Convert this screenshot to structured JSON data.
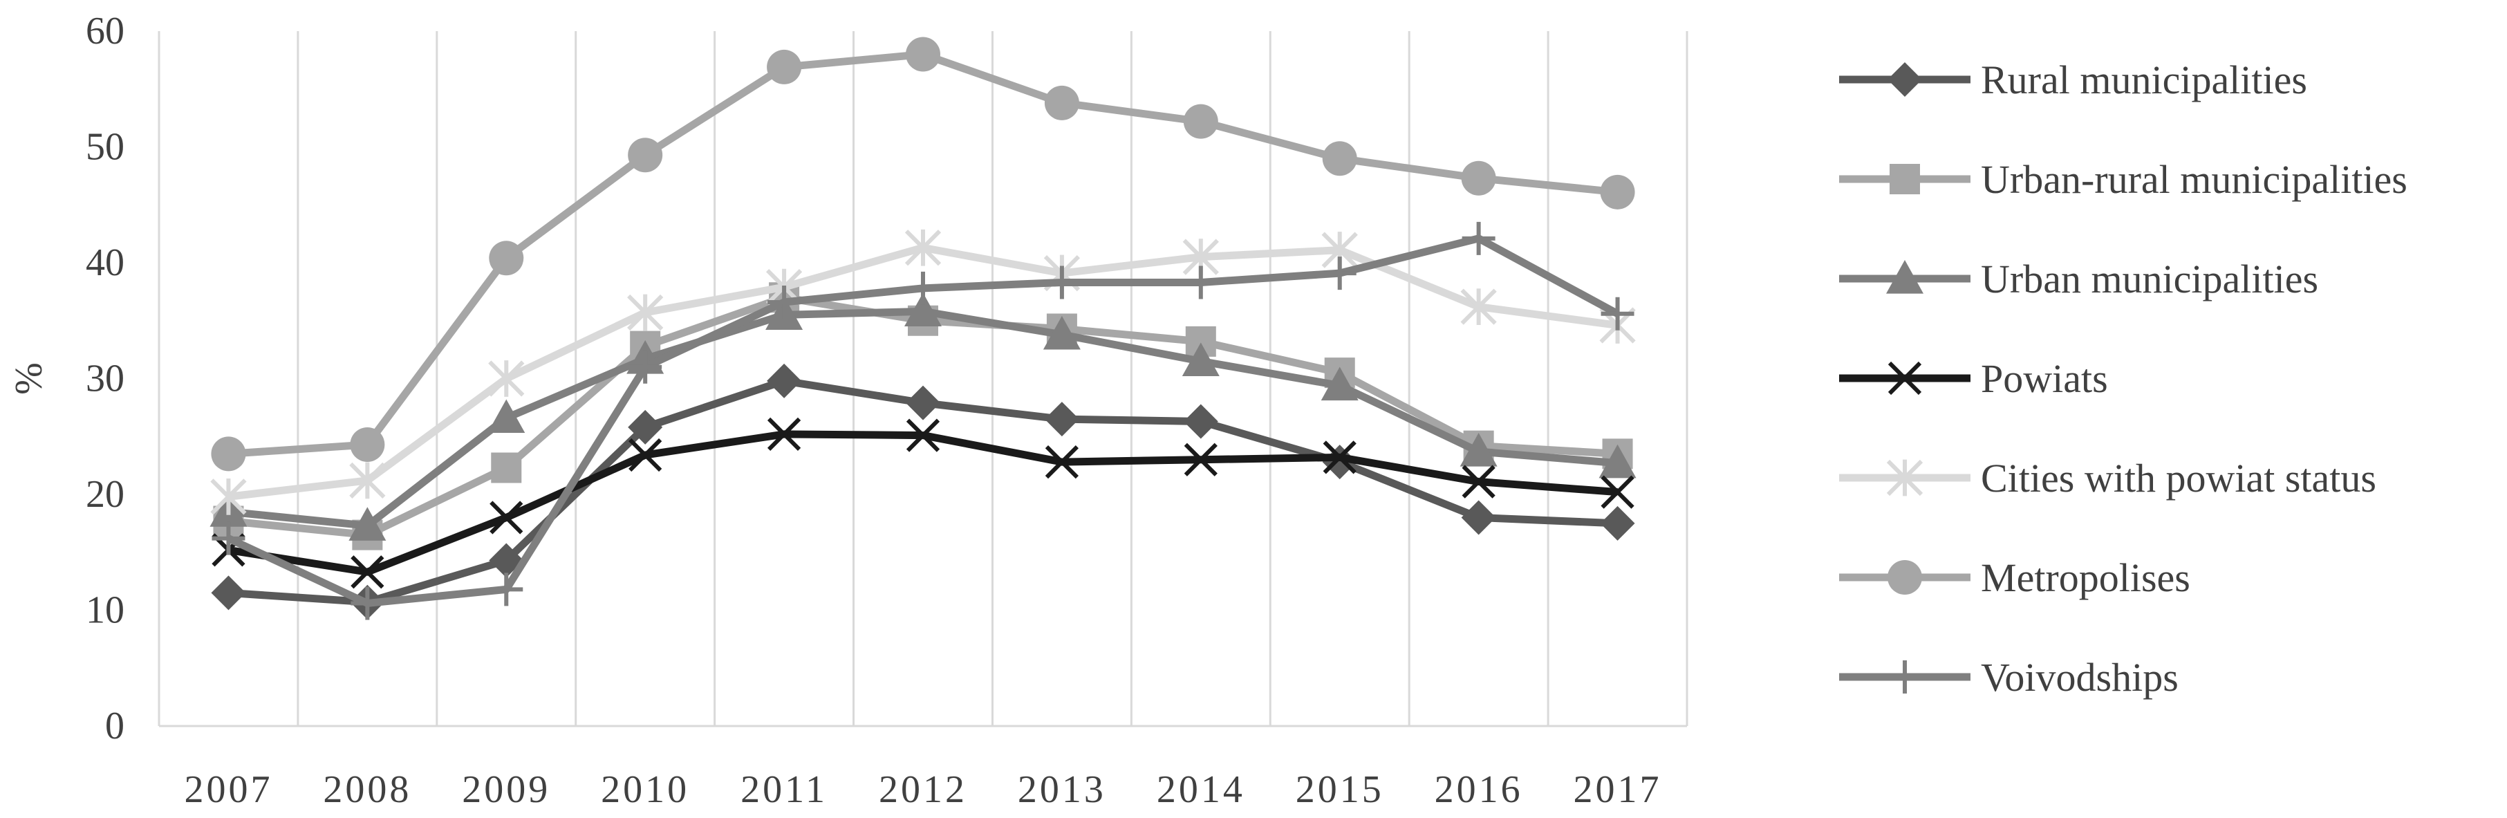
{
  "chart_data": {
    "type": "line",
    "title": "",
    "xlabel": "",
    "ylabel": "%",
    "ylim": [
      0,
      60
    ],
    "yticks": [
      0,
      10,
      20,
      30,
      40,
      50,
      60
    ],
    "grid": {
      "vertical": true,
      "horizontal": false
    },
    "legend_position": "right",
    "categories": [
      "2007",
      "2008",
      "2009",
      "2010",
      "2011",
      "2012",
      "2013",
      "2014",
      "2015",
      "2016",
      "2017"
    ],
    "series": [
      {
        "name": "Rural municipalities",
        "marker": "diamond",
        "color": "#595959",
        "values": [
          11.5,
          10.7,
          14.3,
          25.8,
          29.8,
          27.9,
          26.5,
          26.3,
          22.8,
          18.0,
          17.5
        ]
      },
      {
        "name": "Urban-rural municipalities",
        "marker": "square",
        "color": "#a6a6a6",
        "values": [
          17.7,
          16.5,
          22.3,
          32.8,
          37.0,
          35.0,
          34.3,
          33.2,
          30.5,
          24.2,
          23.5
        ]
      },
      {
        "name": "Urban municipalities",
        "marker": "triangle",
        "color": "#7f7f7f",
        "values": [
          18.5,
          17.3,
          26.6,
          31.7,
          35.5,
          35.8,
          33.8,
          31.5,
          29.4,
          23.7,
          22.7
        ]
      },
      {
        "name": "Powiats",
        "marker": "x",
        "color": "#1a1a1a",
        "values": [
          15.2,
          13.3,
          18.0,
          23.4,
          25.2,
          25.1,
          22.8,
          23.0,
          23.2,
          21.1,
          20.2
        ]
      },
      {
        "name": "Cities with powiat status",
        "marker": "star",
        "color": "#d9d9d9",
        "values": [
          19.8,
          21.2,
          30.0,
          35.7,
          37.9,
          41.3,
          39.1,
          40.5,
          41.1,
          36.2,
          34.6
        ]
      },
      {
        "name": "Metropolises",
        "marker": "circle",
        "color": "#a6a6a6",
        "values": [
          23.5,
          24.3,
          40.4,
          49.3,
          56.9,
          58.0,
          53.8,
          52.2,
          49.0,
          47.3,
          46.1
        ]
      },
      {
        "name": "Voivodships",
        "marker": "plus",
        "color": "#7f7f7f",
        "values": [
          16.2,
          10.6,
          11.8,
          31.0,
          36.6,
          37.8,
          38.3,
          38.3,
          39.1,
          42.1,
          35.6
        ]
      }
    ]
  }
}
